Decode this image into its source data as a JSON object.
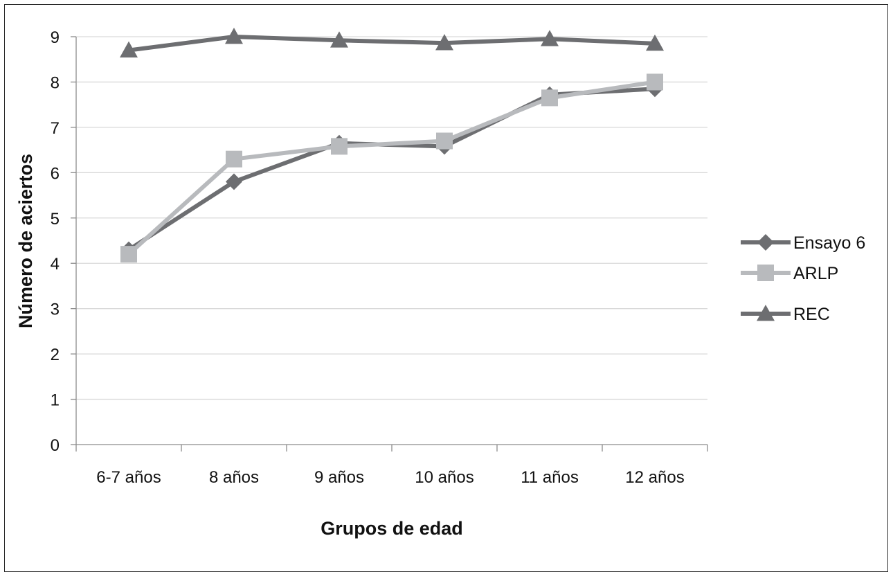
{
  "chart_data": {
    "type": "line",
    "title": "",
    "xlabel": "Grupos de edad",
    "ylabel": "Número de aciertos",
    "categories": [
      "6-7 años",
      "8 años",
      "9 años",
      "10 años",
      "11 años",
      "12 años"
    ],
    "ylim": [
      0,
      9
    ],
    "yticks": [
      "0",
      "1",
      "2",
      "3",
      "4",
      "5",
      "6",
      "7",
      "8",
      "9"
    ],
    "grid": "horizontal",
    "legend_position": "right",
    "series": [
      {
        "name": "Ensayo 6",
        "values": [
          4.3,
          5.8,
          6.65,
          6.58,
          7.72,
          7.85
        ],
        "color": "#6d6e71",
        "marker": "diamond"
      },
      {
        "name": "ARLP",
        "values": [
          4.2,
          6.3,
          6.58,
          6.7,
          7.65,
          8.0
        ],
        "color": "#b8babd",
        "marker": "square"
      },
      {
        "name": "REC",
        "values": [
          8.7,
          9.0,
          8.92,
          8.86,
          8.95,
          8.85
        ],
        "color": "#6d6e71",
        "marker": "triangle"
      }
    ]
  }
}
